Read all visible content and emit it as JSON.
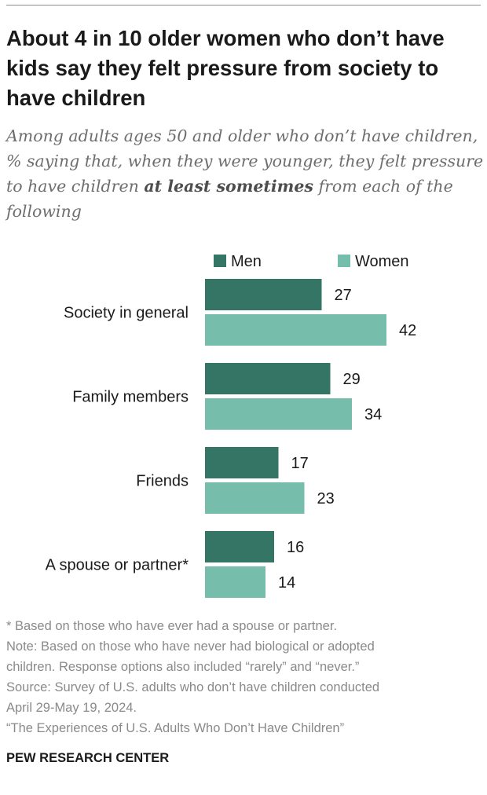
{
  "title": "About 4 in 10 older women who don’t have kids say they felt pressure from society to have children",
  "subtitle": {
    "before": "Among adults ages 50 and older who don’t have children, % saying that, when they were younger, they felt pressure to have children ",
    "emphasis": "at least sometimes",
    "after": " from each of the following"
  },
  "colors": {
    "men": "#347565",
    "women": "#76bdab"
  },
  "chart_data": {
    "type": "bar",
    "orientation": "horizontal",
    "categories": [
      "Society in general",
      "Family members",
      "Friends",
      "A spouse or partner*"
    ],
    "series": [
      {
        "name": "Men",
        "values": [
          27,
          29,
          17,
          16
        ]
      },
      {
        "name": "Women",
        "values": [
          42,
          34,
          23,
          14
        ]
      }
    ],
    "xlim": [
      0,
      50
    ],
    "legend": "top",
    "grid": false
  },
  "notes": [
    "* Based on those who have ever had a spouse or partner.",
    "Note: Based on those who have never had biological or adopted",
    "children. Response options also included “rarely” and “never.”",
    "Source: Survey of U.S. adults who don’t have children conducted",
    "April 29-May 19, 2024.",
    "“The Experiences of U.S. Adults Who Don’t Have Children”"
  ],
  "source_org": "PEW RESEARCH CENTER"
}
